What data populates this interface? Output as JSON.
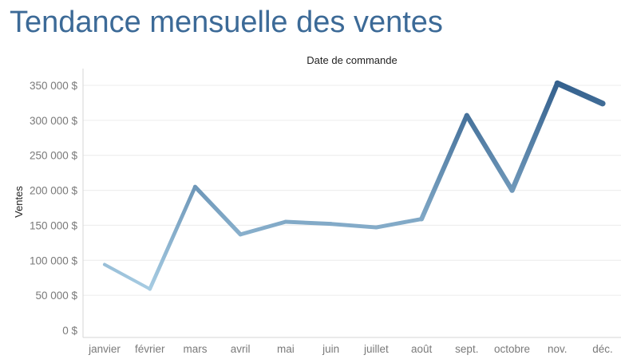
{
  "page": {
    "title": "Tendance mensuelle des ventes"
  },
  "chart_data": {
    "type": "line",
    "title": "Tendance mensuelle des ventes",
    "top_axis_label": "Date de commande",
    "xlabel": "",
    "ylabel": "Ventes",
    "categories": [
      "janvier",
      "février",
      "mars",
      "avril",
      "mai",
      "juin",
      "juillet",
      "août",
      "sept.",
      "octobre",
      "nov.",
      "déc."
    ],
    "series": [
      {
        "values": [
          94000,
          59000,
          205000,
          137000,
          155000,
          152000,
          147000,
          159000,
          307000,
          200000,
          353000,
          324000
        ]
      }
    ],
    "yticks": [
      0,
      50000,
      100000,
      150000,
      200000,
      250000,
      300000,
      350000
    ],
    "ytick_labels": [
      "0 $",
      "50 000 $",
      "100 000 $",
      "150 000 $",
      "200 000 $",
      "250 000 $",
      "300 000 $",
      "350 000 $"
    ],
    "ylim": [
      0,
      370000
    ],
    "grid": true,
    "legend": "none",
    "colors": {
      "low": "#aed3e8",
      "high": "#2e5b89",
      "title": "#3c6a97",
      "grid": "#ececec",
      "tick": "#7a7a7a"
    }
  }
}
